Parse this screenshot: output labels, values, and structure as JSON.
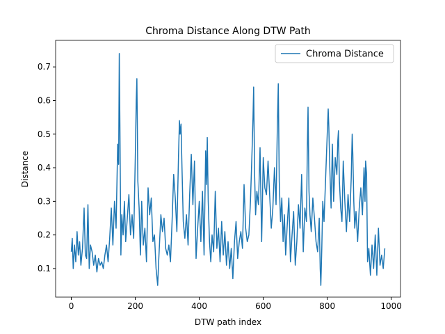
{
  "chart_data": {
    "type": "line",
    "title": "Chroma Distance Along DTW Path",
    "xlabel": "DTW path index",
    "ylabel": "Distance",
    "x": [
      0,
      3,
      6,
      10,
      14,
      18,
      22,
      26,
      30,
      35,
      40,
      44,
      48,
      52,
      56,
      60,
      65,
      70,
      75,
      80,
      85,
      90,
      95,
      100,
      105,
      110,
      115,
      120,
      125,
      130,
      135,
      140,
      145,
      148,
      150,
      152,
      155,
      158,
      162,
      166,
      170,
      175,
      180,
      185,
      190,
      195,
      200,
      203,
      205,
      208,
      212,
      216,
      220,
      225,
      230,
      235,
      240,
      245,
      250,
      255,
      260,
      265,
      268,
      270,
      273,
      276,
      280,
      285,
      290,
      295,
      300,
      305,
      310,
      315,
      320,
      325,
      330,
      335,
      338,
      340,
      343,
      346,
      350,
      355,
      360,
      365,
      370,
      375,
      380,
      385,
      390,
      395,
      400,
      405,
      410,
      415,
      420,
      423,
      425,
      428,
      432,
      436,
      440,
      445,
      450,
      455,
      460,
      465,
      470,
      475,
      480,
      485,
      490,
      495,
      500,
      505,
      510,
      515,
      520,
      525,
      530,
      535,
      540,
      545,
      550,
      555,
      560,
      565,
      568,
      570,
      573,
      576,
      580,
      585,
      590,
      595,
      600,
      605,
      610,
      615,
      620,
      625,
      630,
      635,
      640,
      644,
      647,
      650,
      654,
      658,
      662,
      666,
      670,
      675,
      680,
      685,
      690,
      695,
      700,
      705,
      710,
      715,
      720,
      725,
      730,
      735,
      738,
      740,
      743,
      746,
      750,
      755,
      760,
      765,
      770,
      775,
      778,
      780,
      783,
      786,
      790,
      795,
      800,
      803,
      805,
      808,
      812,
      816,
      820,
      825,
      830,
      833,
      835,
      838,
      842,
      846,
      850,
      855,
      860,
      865,
      870,
      875,
      878,
      880,
      883,
      886,
      890,
      895,
      900,
      905,
      910,
      915,
      918,
      920,
      923,
      926,
      930,
      935,
      940,
      945,
      950,
      955,
      960,
      965,
      970,
      975,
      980
    ],
    "series": [
      {
        "name": "Chroma Distance",
        "color": "#1f77b4",
        "values": [
          0.15,
          0.19,
          0.1,
          0.17,
          0.12,
          0.21,
          0.14,
          0.18,
          0.11,
          0.16,
          0.28,
          0.14,
          0.13,
          0.29,
          0.1,
          0.17,
          0.15,
          0.11,
          0.14,
          0.09,
          0.13,
          0.11,
          0.12,
          0.1,
          0.14,
          0.17,
          0.12,
          0.19,
          0.28,
          0.17,
          0.3,
          0.22,
          0.47,
          0.41,
          0.74,
          0.52,
          0.14,
          0.26,
          0.2,
          0.3,
          0.18,
          0.25,
          0.32,
          0.2,
          0.26,
          0.19,
          0.43,
          0.6,
          0.665,
          0.36,
          0.28,
          0.14,
          0.3,
          0.17,
          0.22,
          0.12,
          0.34,
          0.26,
          0.31,
          0.18,
          0.2,
          0.1,
          0.07,
          0.05,
          0.12,
          0.18,
          0.26,
          0.21,
          0.25,
          0.16,
          0.14,
          0.17,
          0.12,
          0.24,
          0.38,
          0.31,
          0.21,
          0.43,
          0.54,
          0.5,
          0.53,
          0.4,
          0.24,
          0.19,
          0.26,
          0.17,
          0.32,
          0.44,
          0.29,
          0.42,
          0.13,
          0.22,
          0.3,
          0.18,
          0.33,
          0.14,
          0.45,
          0.35,
          0.49,
          0.3,
          0.18,
          0.12,
          0.2,
          0.15,
          0.33,
          0.16,
          0.22,
          0.12,
          0.24,
          0.14,
          0.21,
          0.11,
          0.18,
          0.1,
          0.16,
          0.07,
          0.18,
          0.24,
          0.13,
          0.18,
          0.21,
          0.16,
          0.35,
          0.22,
          0.18,
          0.2,
          0.3,
          0.45,
          0.55,
          0.64,
          0.38,
          0.26,
          0.33,
          0.29,
          0.46,
          0.18,
          0.43,
          0.34,
          0.32,
          0.42,
          0.32,
          0.22,
          0.28,
          0.4,
          0.29,
          0.52,
          0.65,
          0.36,
          0.24,
          0.31,
          0.18,
          0.26,
          0.14,
          0.23,
          0.31,
          0.12,
          0.2,
          0.27,
          0.11,
          0.18,
          0.29,
          0.22,
          0.38,
          0.15,
          0.28,
          0.24,
          0.47,
          0.58,
          0.33,
          0.26,
          0.21,
          0.31,
          0.25,
          0.18,
          0.15,
          0.25,
          0.1,
          0.05,
          0.16,
          0.3,
          0.24,
          0.37,
          0.5,
          0.575,
          0.52,
          0.4,
          0.28,
          0.47,
          0.3,
          0.43,
          0.38,
          0.48,
          0.51,
          0.36,
          0.28,
          0.24,
          0.42,
          0.3,
          0.21,
          0.32,
          0.24,
          0.37,
          0.5,
          0.44,
          0.3,
          0.22,
          0.27,
          0.18,
          0.28,
          0.34,
          0.26,
          0.4,
          0.3,
          0.42,
          0.38,
          0.12,
          0.16,
          0.08,
          0.17,
          0.1,
          0.2,
          0.08,
          0.22,
          0.11,
          0.14,
          0.1,
          0.16
        ]
      }
    ],
    "xlim": [
      -49,
      1029
    ],
    "xticks": [
      0,
      200,
      400,
      600,
      800,
      1000
    ],
    "ylim": [
      0.015,
      0.779
    ],
    "yticks": [
      0.1,
      0.2,
      0.3,
      0.4,
      0.5,
      0.6,
      0.7
    ],
    "grid": false,
    "legend": "upper right"
  }
}
